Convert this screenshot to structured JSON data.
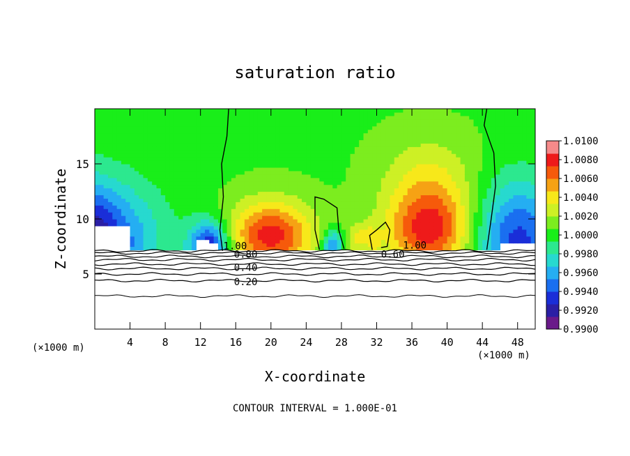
{
  "chart_data": {
    "type": "heatmap",
    "title": "saturation ratio",
    "xlabel": "X-coordinate",
    "ylabel": "Z-coordinate",
    "x_unit": "(×1000 m)",
    "y_unit": "(×1000 m)",
    "xlim": [
      0,
      50
    ],
    "ylim": [
      0,
      20
    ],
    "x_ticks": [
      "4",
      "8",
      "12",
      "16",
      "20",
      "24",
      "28",
      "32",
      "36",
      "40",
      "44",
      "48"
    ],
    "y_ticks": [
      "5",
      "10",
      "15"
    ],
    "colorbar": {
      "range": [
        0.99,
        1.01
      ],
      "labels": [
        "1.0100",
        "1.0080",
        "1.0060",
        "1.0040",
        "1.0020",
        "1.0000",
        "0.9980",
        "0.9960",
        "0.9940",
        "0.9920",
        "0.9900"
      ]
    },
    "contour_labels": [
      "1.00",
      "0.80",
      "0.60",
      "0.40",
      "0.20",
      "1.00"
    ],
    "contour_interval_text": "CONTOUR INTERVAL = 1.000E-01"
  },
  "colors": {
    "plot_background": "#ffffff",
    "contour_line": "#000000"
  }
}
